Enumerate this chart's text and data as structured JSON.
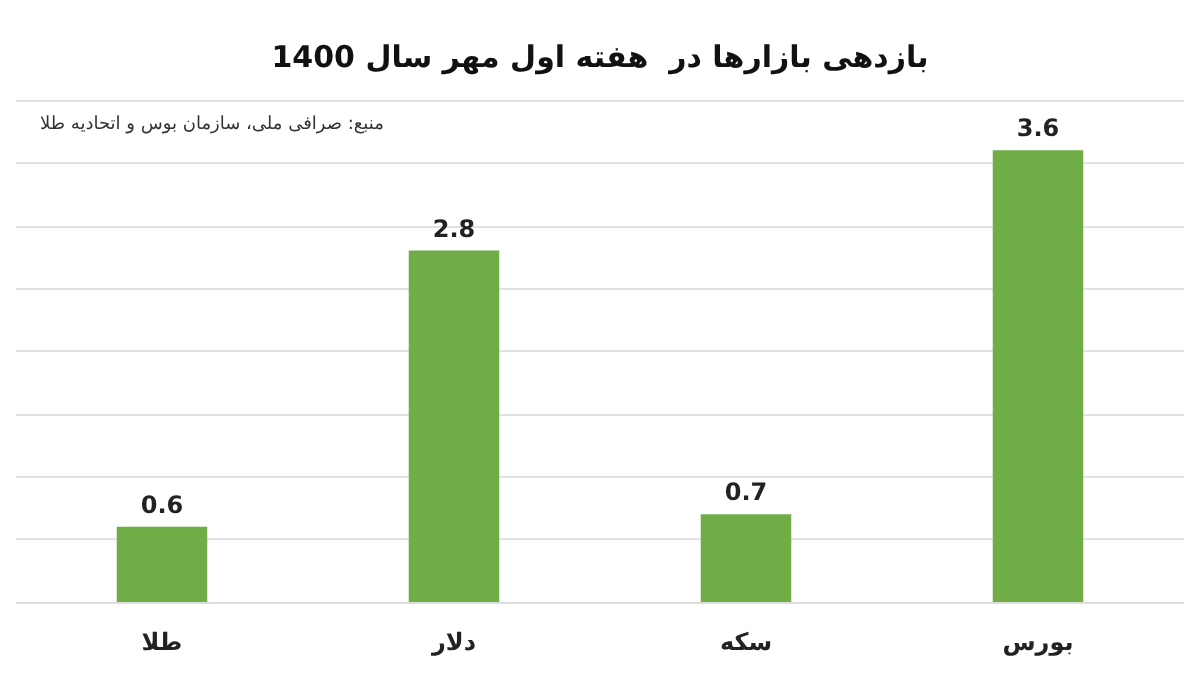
{
  "chart_data": {
    "type": "bar",
    "title": "بازدهی بازارها در  هفته اول مهر سال 1400",
    "annotations": [
      "منبع: صرافی ملی، سازمان بوس و اتحادیه طلا"
    ],
    "categories": [
      "طلا",
      "دلار",
      "سکه",
      "بورس"
    ],
    "values": [
      0.6,
      2.8,
      0.7,
      3.6
    ],
    "color": "#70ad47",
    "tick_labels": "x",
    "grid": "y",
    "data_labels": true
  }
}
